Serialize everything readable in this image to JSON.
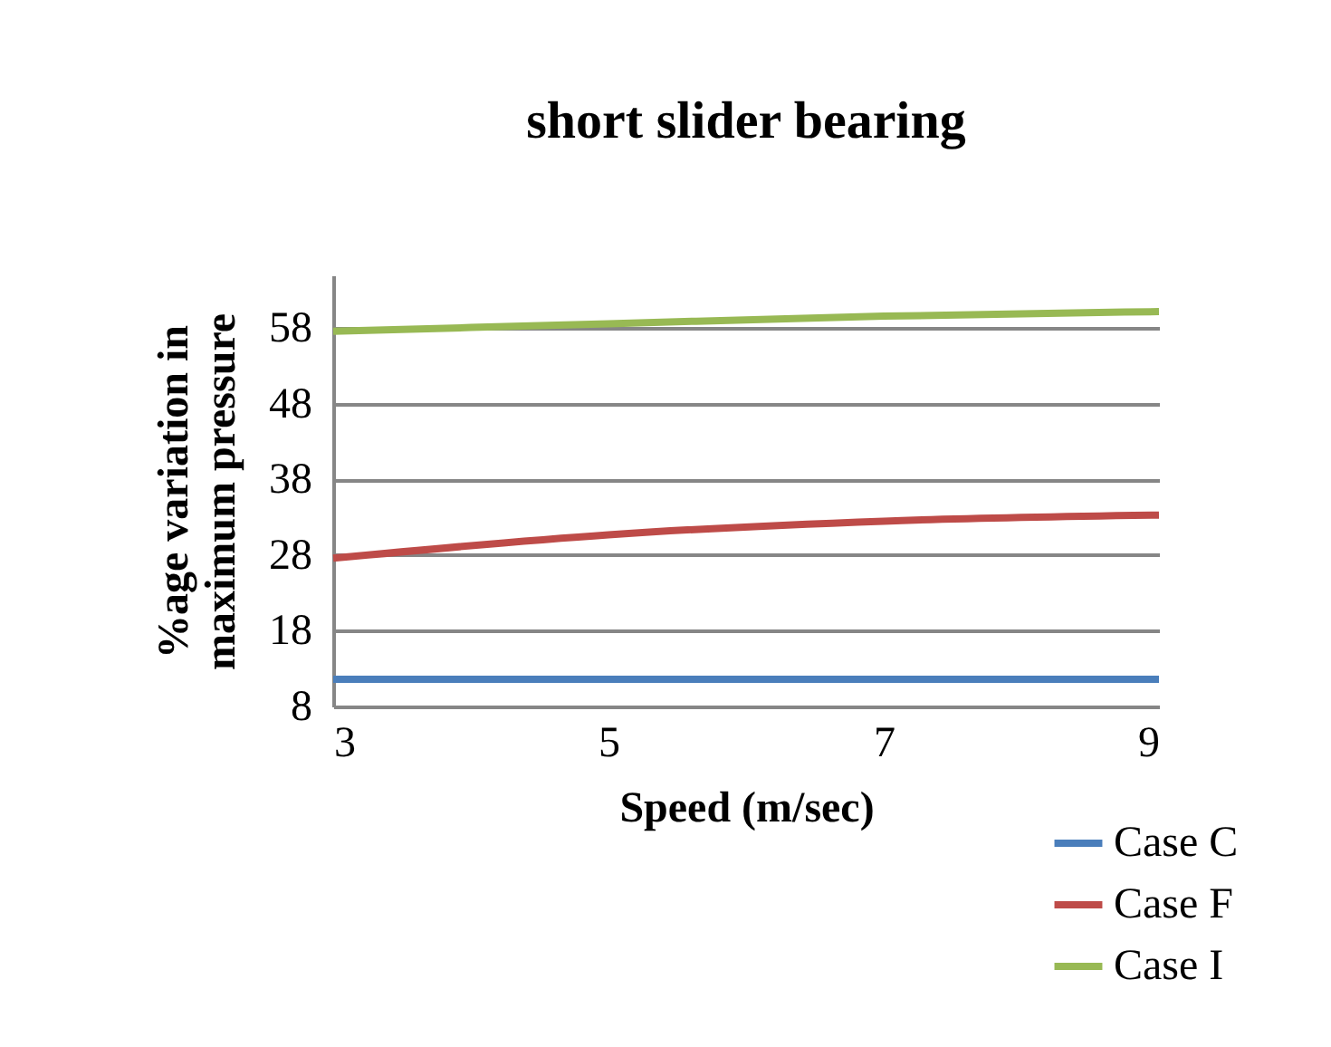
{
  "chart_data": {
    "type": "line",
    "title": "short slider bearing",
    "xlabel": "Speed  (m/sec)",
    "ylabel": "%age variation in maximum pressure",
    "x": [
      3,
      5,
      7,
      9
    ],
    "xlim": [
      3,
      9
    ],
    "xticks": [
      3,
      5,
      7,
      9
    ],
    "ylim": [
      8,
      65
    ],
    "yticks": [
      8,
      18,
      28,
      38,
      48,
      58
    ],
    "grid": "y",
    "legend": "bottom right",
    "marker": "none",
    "line_style": "solid",
    "series": [
      {
        "name": "Case C",
        "color": "#4a7ebb",
        "values": [
          11.6,
          11.6,
          11.6,
          11.6
        ]
      },
      {
        "name": "Case F",
        "color": "#be4b48",
        "values": [
          27.6,
          30.7,
          32.5,
          33.3
        ]
      },
      {
        "name": "Case I",
        "color": "#98b954",
        "values": [
          57.6,
          58.6,
          59.6,
          60.2
        ]
      }
    ]
  }
}
